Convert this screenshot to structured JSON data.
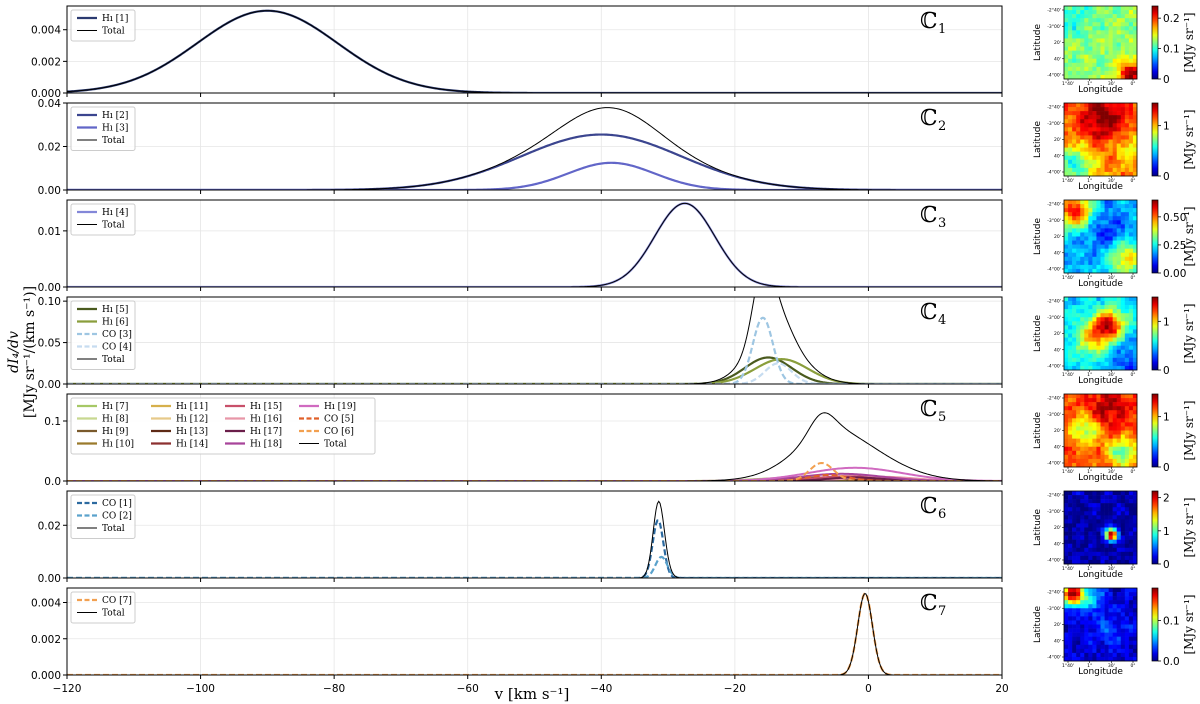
{
  "chart_data": {
    "type": "line",
    "xlabel": "v [km s⁻¹]",
    "ylabel_top": "dI₄/dv",
    "ylabel_bottom": "[MJy sr⁻¹/(km s⁻¹)]",
    "xlim": [
      -120,
      20
    ],
    "xticks": [
      -120,
      -100,
      -80,
      -60,
      -40,
      -20,
      0,
      20
    ],
    "map_axis_labels": {
      "x": "Longitude",
      "y": "Latitude"
    },
    "map_xticks": [
      "1°40'",
      "1°",
      "30'",
      "0°"
    ],
    "map_yticks": [
      "-2°40'",
      "-3°00'",
      "20'",
      "40'",
      "-4°00'"
    ],
    "colorbar_label": "[MJy sr⁻¹]",
    "panels": [
      {
        "label": "ℂ",
        "index": "1",
        "ylim": [
          0,
          0.0055
        ],
        "yticks": [
          "0.000",
          "0.002",
          "0.004"
        ],
        "ytick_values": [
          0,
          0.002,
          0.004
        ],
        "series": [
          {
            "name": "Hı [1]",
            "color": "#2b3a70",
            "dash": false,
            "width": 2.2,
            "amp": 0.0052,
            "mu": -90,
            "sigma": 10.5
          },
          {
            "name": "Total",
            "color": "#000000",
            "dash": false,
            "width": 1,
            "total": true
          }
        ],
        "colorbar": {
          "ticks": [
            "0",
            "0.1",
            "0.2"
          ],
          "tick_values": [
            0,
            0.1,
            0.2
          ],
          "vmax": 0.24
        },
        "map": {
          "base": 0.52,
          "blobs": [
            {
              "x": 0.92,
              "y": 0.92,
              "a": 0.45,
              "s": 0.12
            },
            {
              "x": 0.1,
              "y": 0.15,
              "a": -0.12,
              "s": 0.2
            }
          ]
        }
      },
      {
        "label": "ℂ",
        "index": "2",
        "ylim": [
          0,
          0.04
        ],
        "yticks": [
          "0.00",
          "0.02",
          "0.04"
        ],
        "ytick_values": [
          0,
          0.02,
          0.04
        ],
        "series": [
          {
            "name": "Hı [2]",
            "color": "#3b458f",
            "dash": false,
            "width": 2.2,
            "amp": 0.0255,
            "mu": -40,
            "sigma": 12
          },
          {
            "name": "Hı [3]",
            "color": "#6266c8",
            "dash": false,
            "width": 2.2,
            "amp": 0.0125,
            "mu": -38.5,
            "sigma": 6.5
          },
          {
            "name": "Total",
            "color": "#000000",
            "dash": false,
            "width": 1,
            "total": true
          }
        ],
        "colorbar": {
          "ticks": [
            "0",
            "1"
          ],
          "tick_values": [
            0,
            1
          ],
          "vmax": 1.45
        },
        "map": {
          "base": 0.75,
          "blobs": [
            {
              "x": 0.55,
              "y": 0.2,
              "a": 0.25,
              "s": 0.25
            },
            {
              "x": 0.15,
              "y": 0.85,
              "a": -0.35,
              "s": 0.18
            },
            {
              "x": 0.9,
              "y": 0.6,
              "a": -0.15,
              "s": 0.15
            }
          ]
        }
      },
      {
        "label": "ℂ",
        "index": "3",
        "ylim": [
          0,
          0.0155
        ],
        "yticks": [
          "0.00",
          "0.01"
        ],
        "ytick_values": [
          0,
          0.01
        ],
        "series": [
          {
            "name": "Hı [4]",
            "color": "#8387d8",
            "dash": false,
            "width": 2.2,
            "amp": 0.0149,
            "mu": -27.5,
            "sigma": 4.5
          },
          {
            "name": "Total",
            "color": "#000000",
            "dash": false,
            "width": 1,
            "total": true
          }
        ],
        "colorbar": {
          "ticks": [
            "0.00",
            "0.25",
            "0.50"
          ],
          "tick_values": [
            0,
            0.25,
            0.5
          ],
          "vmax": 0.65
        },
        "map": {
          "base": 0.3,
          "blobs": [
            {
              "x": 0.15,
              "y": 0.15,
              "a": 0.6,
              "s": 0.16
            },
            {
              "x": 0.85,
              "y": 0.8,
              "a": 0.35,
              "s": 0.18
            },
            {
              "x": 0.6,
              "y": 0.45,
              "a": -0.15,
              "s": 0.2
            }
          ]
        }
      },
      {
        "label": "ℂ",
        "index": "4",
        "ylim": [
          0,
          0.105
        ],
        "yticks": [
          "0.00",
          "0.05",
          "0.10"
        ],
        "ytick_values": [
          0,
          0.05,
          0.1
        ],
        "series": [
          {
            "name": "Hı [5]",
            "color": "#4a5a1e",
            "dash": false,
            "width": 2.2,
            "amp": 0.032,
            "mu": -15,
            "sigma": 3.5
          },
          {
            "name": "Hı [6]",
            "color": "#8a9e3c",
            "dash": false,
            "width": 2.2,
            "amp": 0.03,
            "mu": -13,
            "sigma": 4
          },
          {
            "name": "CO [3]",
            "color": "#9ec6e2",
            "dash": true,
            "width": 2.2,
            "amp": 0.08,
            "mu": -15.8,
            "sigma": 1.5
          },
          {
            "name": "CO [4]",
            "color": "#c6dcf0",
            "dash": true,
            "width": 2.2,
            "amp": 0.025,
            "mu": -13.5,
            "sigma": 2
          },
          {
            "name": "Total",
            "color": "#000000",
            "dash": false,
            "width": 1,
            "total": true
          }
        ],
        "colorbar": {
          "ticks": [
            "0",
            "1"
          ],
          "tick_values": [
            0,
            1
          ],
          "vmax": 1.5
        },
        "map": {
          "base": 0.35,
          "blobs": [
            {
              "x": 0.62,
              "y": 0.38,
              "a": 0.55,
              "s": 0.14
            },
            {
              "x": 0.4,
              "y": 0.55,
              "a": 0.35,
              "s": 0.16
            },
            {
              "x": 0.9,
              "y": 0.9,
              "a": -0.15,
              "s": 0.2
            }
          ]
        }
      },
      {
        "label": "ℂ",
        "index": "5",
        "ylim": [
          0,
          0.145
        ],
        "yticks": [
          "0.0",
          "0.1"
        ],
        "ytick_values": [
          0,
          0.1
        ],
        "series": [
          {
            "name": "Hı [7]",
            "color": "#a6c866",
            "dash": false,
            "width": 2,
            "amp": 0.005,
            "mu": -12,
            "sigma": 5
          },
          {
            "name": "Hı [8]",
            "color": "#c8d890",
            "dash": false,
            "width": 2,
            "amp": 0.004,
            "mu": -9,
            "sigma": 5
          },
          {
            "name": "Hı [9]",
            "color": "#7a5a2c",
            "dash": false,
            "width": 2,
            "amp": 0.006,
            "mu": -8,
            "sigma": 4
          },
          {
            "name": "Hı [10]",
            "color": "#9a7a2c",
            "dash": false,
            "width": 2,
            "amp": 0.005,
            "mu": -6,
            "sigma": 5
          },
          {
            "name": "Hı [11]",
            "color": "#d6b04c",
            "dash": false,
            "width": 2,
            "amp": 0.006,
            "mu": -10,
            "sigma": 4
          },
          {
            "name": "Hı [12]",
            "color": "#e6c98a",
            "dash": false,
            "width": 2,
            "amp": 0.004,
            "mu": -4,
            "sigma": 5
          },
          {
            "name": "Hı [13]",
            "color": "#5e2a16",
            "dash": false,
            "width": 2,
            "amp": 0.005,
            "mu": -7,
            "sigma": 4
          },
          {
            "name": "Hı [14]",
            "color": "#8c3030",
            "dash": false,
            "width": 2,
            "amp": 0.006,
            "mu": -5,
            "sigma": 4
          },
          {
            "name": "Hı [15]",
            "color": "#c8506a",
            "dash": false,
            "width": 2,
            "amp": 0.008,
            "mu": -3,
            "sigma": 5
          },
          {
            "name": "Hı [16]",
            "color": "#e896a8",
            "dash": false,
            "width": 2,
            "amp": 0.007,
            "mu": 2,
            "sigma": 5
          },
          {
            "name": "Hı [17]",
            "color": "#6a1e4a",
            "dash": false,
            "width": 2,
            "amp": 0.006,
            "mu": -2,
            "sigma": 4
          },
          {
            "name": "Hı [18]",
            "color": "#a8449a",
            "dash": false,
            "width": 2,
            "amp": 0.012,
            "mu": -4,
            "sigma": 6
          },
          {
            "name": "Hı [19]",
            "color": "#d06ac0",
            "dash": false,
            "width": 2,
            "amp": 0.022,
            "mu": -2,
            "sigma": 7
          },
          {
            "name": "CO [5]",
            "color": "#e0602a",
            "dash": true,
            "width": 2,
            "amp": 0.01,
            "mu": -6,
            "sigma": 3
          },
          {
            "name": "CO [6]",
            "color": "#f2a050",
            "dash": true,
            "width": 2,
            "amp": 0.03,
            "mu": -7,
            "sigma": 1.8
          },
          {
            "name": "Total",
            "color": "#000000",
            "dash": false,
            "width": 1,
            "total": true
          }
        ],
        "colorbar": {
          "ticks": [
            "0",
            "1"
          ],
          "tick_values": [
            0,
            1
          ],
          "vmax": 1.45
        },
        "map": {
          "base": 0.8,
          "blobs": [
            {
              "x": 0.3,
              "y": 0.5,
              "a": -0.3,
              "s": 0.14
            },
            {
              "x": 0.8,
              "y": 0.8,
              "a": -0.35,
              "s": 0.14
            },
            {
              "x": 0.6,
              "y": 0.2,
              "a": 0.15,
              "s": 0.2
            }
          ]
        }
      },
      {
        "label": "ℂ",
        "index": "6",
        "ylim": [
          0,
          0.033
        ],
        "yticks": [
          "0.00",
          "0.02"
        ],
        "ytick_values": [
          0,
          0.02
        ],
        "series": [
          {
            "name": "CO [1]",
            "color": "#2c6aa0",
            "dash": true,
            "width": 2.2,
            "amp": 0.022,
            "mu": -31.5,
            "sigma": 0.8
          },
          {
            "name": "CO [2]",
            "color": "#5aa2cc",
            "dash": true,
            "width": 2.2,
            "amp": 0.008,
            "mu": -31,
            "sigma": 0.9
          },
          {
            "name": "Total",
            "color": "#000000",
            "dash": false,
            "width": 1,
            "total": true
          }
        ],
        "colorbar": {
          "ticks": [
            "0",
            "1",
            "2"
          ],
          "tick_values": [
            0,
            1,
            2
          ],
          "vmax": 2.2
        },
        "map": {
          "base": 0.04,
          "blobs": [
            {
              "x": 0.65,
              "y": 0.6,
              "a": 0.96,
              "s": 0.06
            }
          ]
        }
      },
      {
        "label": "ℂ",
        "index": "7",
        "ylim": [
          0,
          0.0048
        ],
        "yticks": [
          "0.000",
          "0.002",
          "0.004"
        ],
        "ytick_values": [
          0,
          0.002,
          0.004
        ],
        "series": [
          {
            "name": "CO [7]",
            "color": "#f2a050",
            "dash": true,
            "width": 2.2,
            "amp": 0.0045,
            "mu": -0.5,
            "sigma": 1.1
          },
          {
            "name": "Total",
            "color": "#000000",
            "dash": false,
            "width": 1,
            "total": true
          }
        ],
        "colorbar": {
          "ticks": [
            "0.0",
            "0.1"
          ],
          "tick_values": [
            0,
            0.1
          ],
          "vmax": 0.18
        },
        "map": {
          "base": 0.08,
          "blobs": [
            {
              "x": 0.12,
              "y": 0.08,
              "a": 0.9,
              "s": 0.12
            },
            {
              "x": 0.4,
              "y": 0.15,
              "a": 0.2,
              "s": 0.12
            },
            {
              "x": 0.6,
              "y": 0.6,
              "a": 0.12,
              "s": 0.15
            }
          ]
        }
      }
    ]
  }
}
